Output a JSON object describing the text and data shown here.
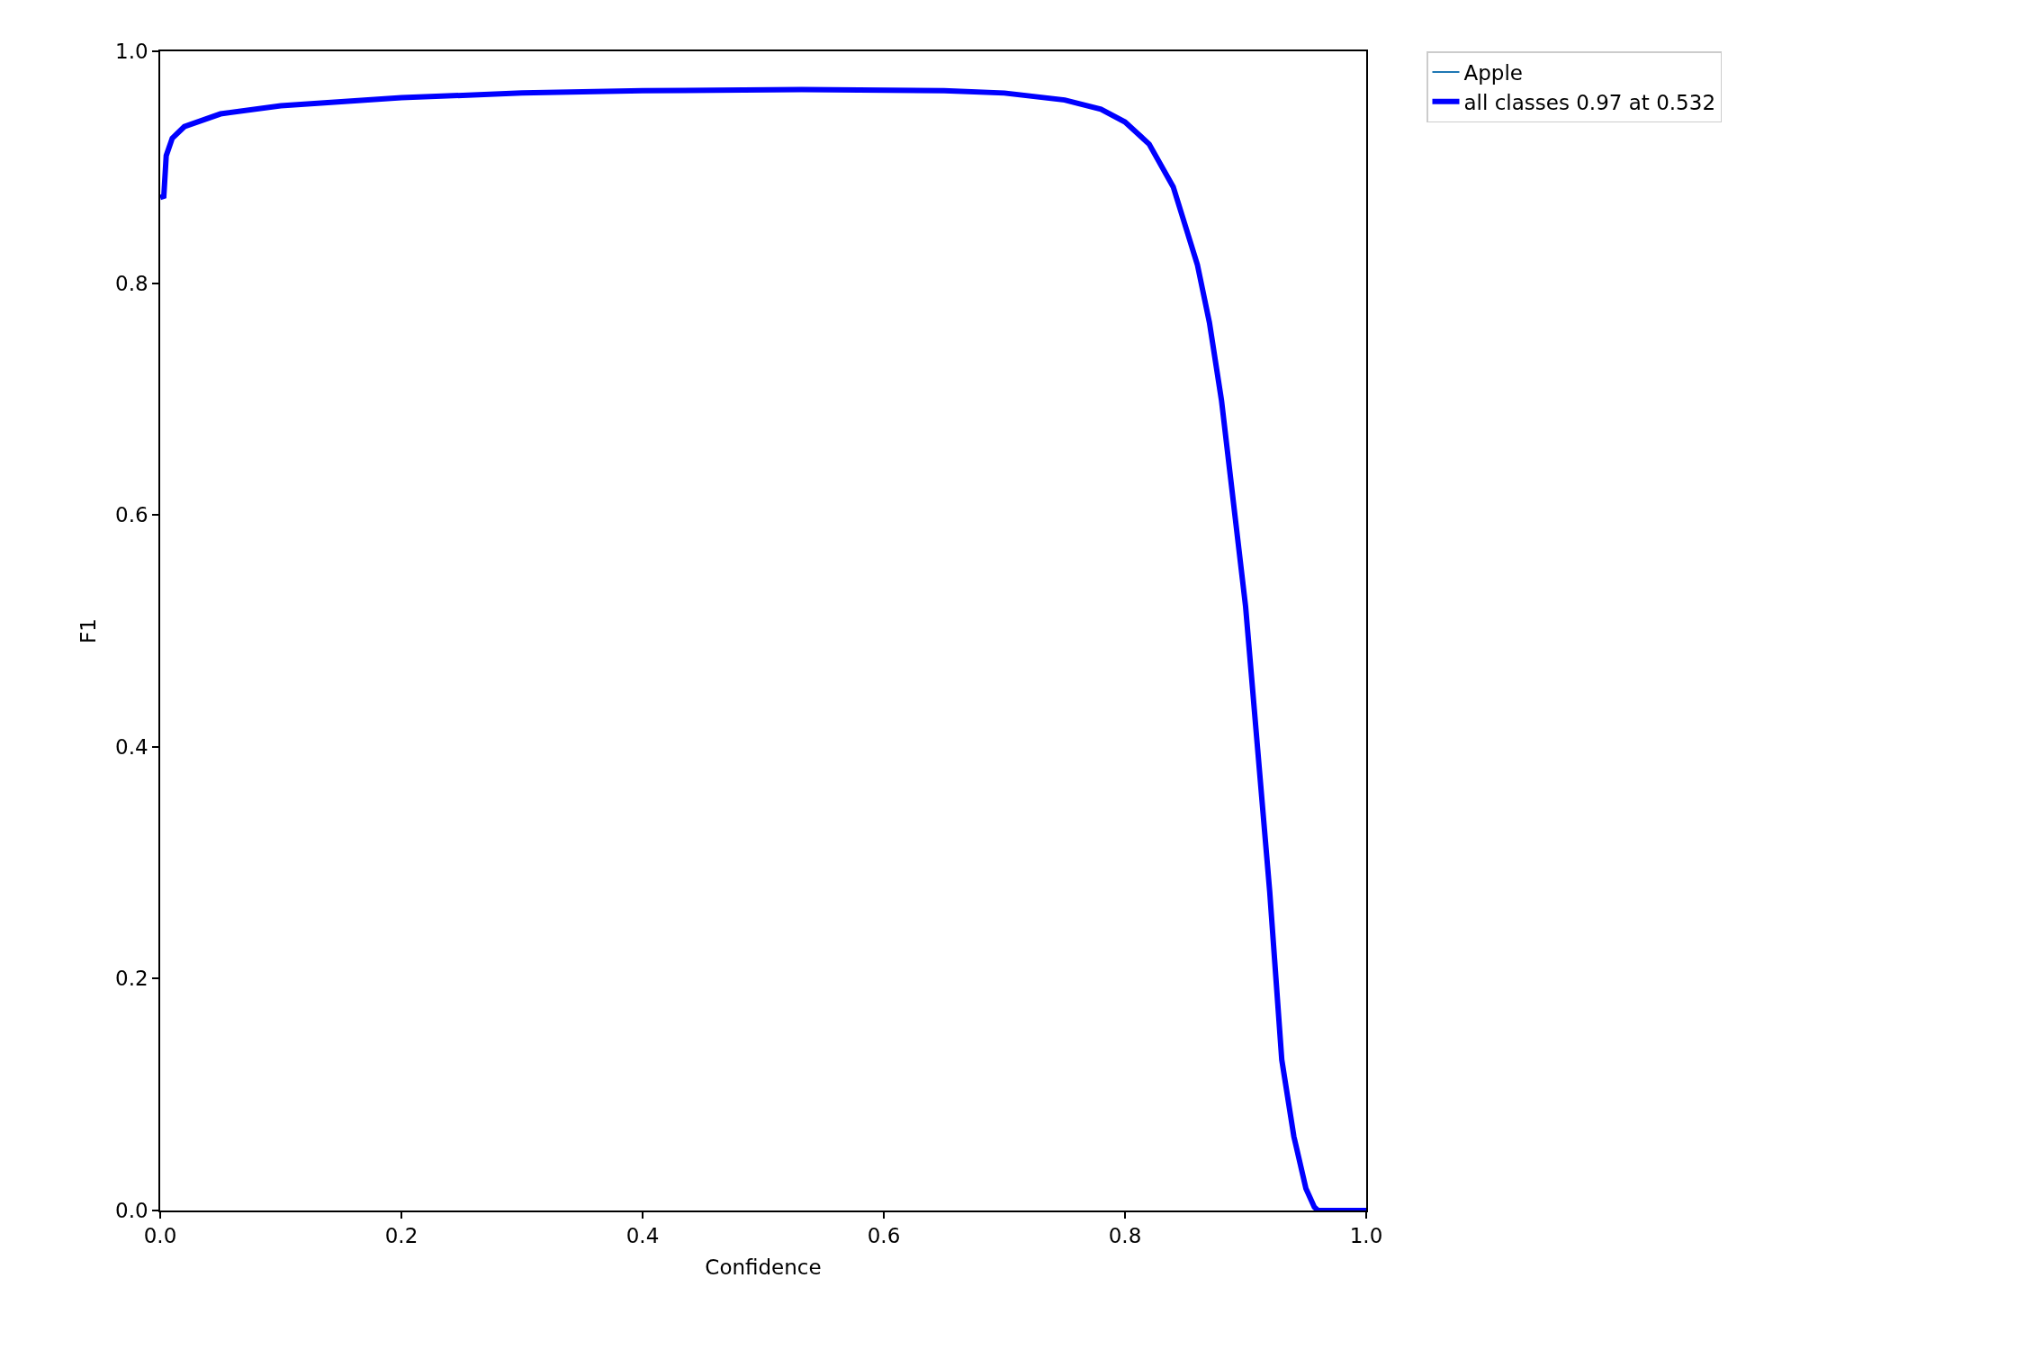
{
  "chart_data": {
    "type": "line",
    "xlabel": "Confidence",
    "ylabel": "F1",
    "x": [
      0,
      0.003,
      0.005,
      0.01,
      0.02,
      0.05,
      0.1,
      0.2,
      0.3,
      0.4,
      0.532,
      0.65,
      0.7,
      0.75,
      0.78,
      0.8,
      0.82,
      0.84,
      0.86,
      0.87,
      0.88,
      0.9,
      0.91,
      0.92,
      0.93,
      0.94,
      0.95,
      0.957,
      0.96,
      1.0
    ],
    "series": [
      {
        "name": "Apple",
        "color": "#1f77b4",
        "values": [
          null,
          null,
          null,
          null,
          null,
          null,
          null,
          null,
          null,
          null,
          null,
          null,
          null,
          null,
          null,
          null,
          null,
          null,
          null,
          null,
          null,
          null,
          null,
          null,
          null,
          null,
          null,
          null,
          null,
          null
        ]
      },
      {
        "name": "all classes 0.97 at 0.532",
        "color": "#0000ff",
        "values": [
          0.874,
          0.875,
          0.91,
          0.925,
          0.935,
          0.946,
          0.953,
          0.96,
          0.964,
          0.966,
          0.967,
          0.966,
          0.964,
          0.958,
          0.95,
          0.939,
          0.92,
          0.883,
          0.816,
          0.766,
          0.699,
          0.521,
          0.398,
          0.275,
          0.13,
          0.064,
          0.019,
          0.003,
          0,
          0
        ]
      }
    ],
    "xlim": [
      0,
      1
    ],
    "ylim": [
      0,
      1
    ],
    "xticks": [
      {
        "value": 0,
        "label": "0.0"
      },
      {
        "value": 0.2,
        "label": "0.2"
      },
      {
        "value": 0.4,
        "label": "0.4"
      },
      {
        "value": 0.6,
        "label": "0.6"
      },
      {
        "value": 0.8,
        "label": "0.8"
      },
      {
        "value": 1,
        "label": "1.0"
      }
    ],
    "yticks": [
      {
        "value": 0,
        "label": "0.0"
      },
      {
        "value": 0.2,
        "label": "0.2"
      },
      {
        "value": 0.4,
        "label": "0.4"
      },
      {
        "value": 0.6,
        "label": "0.6"
      },
      {
        "value": 0.8,
        "label": "0.8"
      },
      {
        "value": 1,
        "label": "1.0"
      }
    ],
    "legend": "top right",
    "marker": "none",
    "line_style": "solid"
  }
}
